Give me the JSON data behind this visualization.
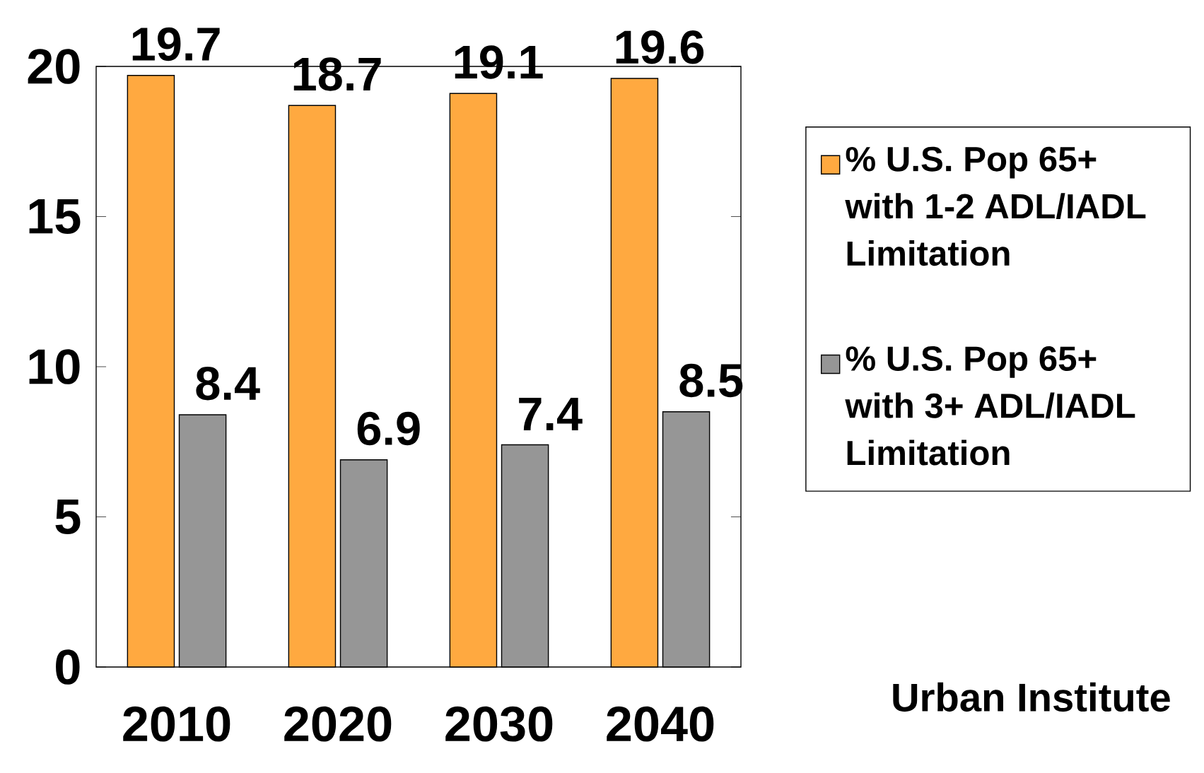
{
  "chart_data": {
    "type": "bar",
    "categories": [
      "2010",
      "2020",
      "2030",
      "2040"
    ],
    "series": [
      {
        "name": "% U.S. Pop 65+ with 1-2 ADL/IADL Limitation",
        "color": "#ffa940",
        "values": [
          19.7,
          18.7,
          19.1,
          19.6
        ]
      },
      {
        "name": "% U.S. Pop 65+ with 3+ ADL/IADL Limitation",
        "color": "#969696",
        "values": [
          8.4,
          6.9,
          7.4,
          8.5
        ]
      }
    ],
    "ylim": [
      0,
      20
    ],
    "yticks": [
      0,
      5,
      10,
      15,
      20
    ],
    "data_labels": true,
    "legend": "right",
    "grid": false,
    "annotations": [
      "Urban Institute"
    ]
  }
}
